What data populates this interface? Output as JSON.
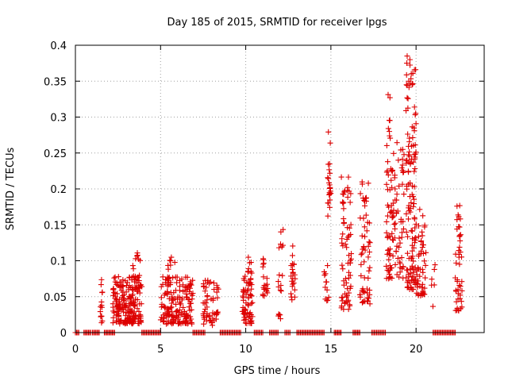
{
  "chart_data": {
    "type": "scatter",
    "title": "Day 185 of 2015, SRMTID for receiver lpgs",
    "xlabel": "GPS time / hours",
    "ylabel": "SRMTID / TECUs",
    "xlim": [
      0,
      24
    ],
    "ylim": [
      0,
      0.4
    ],
    "grid": true,
    "marker": "+",
    "marker_color": "#dd0000",
    "x_ticks": [
      0,
      5,
      10,
      15,
      20
    ],
    "y_ticks": [
      0,
      0.05,
      0.1,
      0.15,
      0.2,
      0.25,
      0.3,
      0.35,
      0.4
    ],
    "x_tick_labels": [
      "0",
      "5",
      "10",
      "15",
      "20"
    ],
    "y_tick_labels": [
      "0",
      "0.05",
      "0.1",
      "0.15",
      "0.2",
      "0.25",
      "0.3",
      "0.35",
      "0.4"
    ],
    "clusters": [
      {
        "x_from": 1.45,
        "x_to": 1.6,
        "y_from": 0.005,
        "y_to": 0.078,
        "n": 14
      },
      {
        "x_from": 2.2,
        "x_to": 3.9,
        "y_from": 0.012,
        "y_to": 0.078,
        "n": 200
      },
      {
        "x_from": 3.3,
        "x_to": 3.8,
        "y_from": 0.06,
        "y_to": 0.116,
        "n": 22
      },
      {
        "x_from": 5.0,
        "x_to": 6.9,
        "y_from": 0.012,
        "y_to": 0.078,
        "n": 170
      },
      {
        "x_from": 5.4,
        "x_to": 5.9,
        "y_from": 0.075,
        "y_to": 0.105,
        "n": 10
      },
      {
        "x_from": 7.5,
        "x_to": 8.4,
        "y_from": 0.01,
        "y_to": 0.075,
        "n": 55
      },
      {
        "x_from": 9.8,
        "x_to": 10.4,
        "y_from": 0.012,
        "y_to": 0.08,
        "n": 65
      },
      {
        "x_from": 10.1,
        "x_to": 10.4,
        "y_from": 0.08,
        "y_to": 0.105,
        "n": 8
      },
      {
        "x_from": 11.0,
        "x_to": 11.3,
        "y_from": 0.05,
        "y_to": 0.105,
        "n": 20
      },
      {
        "x_from": 11.9,
        "x_to": 12.2,
        "y_from": 0.015,
        "y_to": 0.158,
        "n": 18
      },
      {
        "x_from": 12.6,
        "x_to": 12.9,
        "y_from": 0.045,
        "y_to": 0.14,
        "n": 22
      },
      {
        "x_from": 14.6,
        "x_to": 14.9,
        "y_from": 0.035,
        "y_to": 0.1,
        "n": 12
      },
      {
        "x_from": 14.8,
        "x_to": 15.0,
        "y_from": 0.16,
        "y_to": 0.28,
        "n": 22
      },
      {
        "x_from": 15.6,
        "x_to": 16.2,
        "y_from": 0.03,
        "y_to": 0.22,
        "n": 70
      },
      {
        "x_from": 16.7,
        "x_to": 17.3,
        "y_from": 0.04,
        "y_to": 0.21,
        "n": 60
      },
      {
        "x_from": 18.2,
        "x_to": 19.3,
        "y_from": 0.075,
        "y_to": 0.27,
        "n": 110
      },
      {
        "x_from": 18.3,
        "x_to": 18.5,
        "y_from": 0.27,
        "y_to": 0.34,
        "n": 8
      },
      {
        "x_from": 19.4,
        "x_to": 20.0,
        "y_from": 0.06,
        "y_to": 0.385,
        "n": 130
      },
      {
        "x_from": 20.0,
        "x_to": 20.6,
        "y_from": 0.05,
        "y_to": 0.175,
        "n": 50
      },
      {
        "x_from": 20.9,
        "x_to": 21.2,
        "y_from": 0.01,
        "y_to": 0.1,
        "n": 6
      },
      {
        "x_from": 22.3,
        "x_to": 22.7,
        "y_from": 0.03,
        "y_to": 0.18,
        "n": 45
      }
    ],
    "zero_bands": [
      [
        0.0,
        0.2
      ],
      [
        0.5,
        0.9
      ],
      [
        1.0,
        1.4
      ],
      [
        1.7,
        2.3
      ],
      [
        3.9,
        5.0
      ],
      [
        6.9,
        7.6
      ],
      [
        8.5,
        9.7
      ],
      [
        10.5,
        11.0
      ],
      [
        11.4,
        11.9
      ],
      [
        12.3,
        12.6
      ],
      [
        13.0,
        14.6
      ],
      [
        15.2,
        15.6
      ],
      [
        16.3,
        16.7
      ],
      [
        17.4,
        18.2
      ],
      [
        21.0,
        22.3
      ]
    ]
  }
}
